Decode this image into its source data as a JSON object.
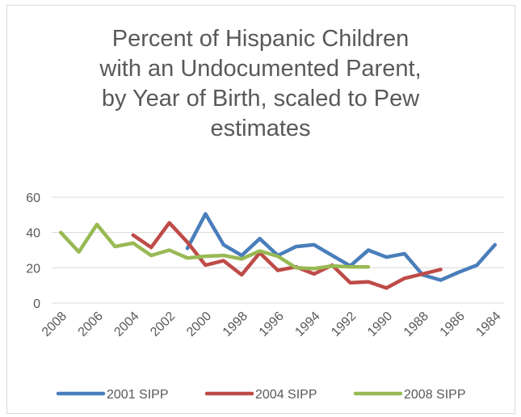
{
  "chart_data": {
    "type": "line",
    "title_lines": [
      "Percent of Hispanic Children",
      "with an Undocumented Parent,",
      "by Year of Birth, scaled to Pew",
      "estimates"
    ],
    "x_categories": [
      "2008",
      "2007",
      "2006",
      "2005",
      "2004",
      "2003",
      "2002",
      "2001",
      "2000",
      "1999",
      "1998",
      "1997",
      "1996",
      "1995",
      "1994",
      "1993",
      "1992",
      "1991",
      "1990",
      "1989",
      "1988",
      "1987",
      "1986",
      "1985",
      "1984"
    ],
    "x_tick_labels": [
      "2008",
      "2006",
      "2004",
      "2002",
      "2000",
      "1998",
      "1996",
      "1994",
      "1992",
      "1990",
      "1988",
      "1986",
      "1984"
    ],
    "y_ticks": [
      0,
      20,
      40,
      60
    ],
    "ylim": [
      0,
      60
    ],
    "grid": true,
    "legend_position": "bottom",
    "series": [
      {
        "name": "2001 SIPP",
        "color": "#4a7ebb",
        "x": [
          "2001",
          "2000",
          "1999",
          "1998",
          "1997",
          "1996",
          "1995",
          "1994",
          "1993",
          "1992",
          "1991",
          "1990",
          "1989",
          "1988",
          "1987",
          "1986",
          "1985",
          "1984"
        ],
        "values": [
          31,
          50.5,
          33,
          27,
          36.5,
          27,
          32,
          33,
          27,
          21,
          30,
          26,
          28,
          16,
          13,
          17.5,
          21.5,
          33
        ]
      },
      {
        "name": "2004 SIPP",
        "color": "#be4b48",
        "x": [
          "2004",
          "2003",
          "2002",
          "2001",
          "2000",
          "1999",
          "1998",
          "1997",
          "1996",
          "1995",
          "1994",
          "1993",
          "1992",
          "1991",
          "1990",
          "1989",
          "1988",
          "1987"
        ],
        "values": [
          38.5,
          31.5,
          45.5,
          34.5,
          21.5,
          24,
          16,
          28.5,
          18.5,
          20.5,
          16.5,
          21.5,
          11.5,
          12,
          8.5,
          14,
          16.5,
          19
        ]
      },
      {
        "name": "2008 SIPP",
        "color": "#98b954",
        "x": [
          "2008",
          "2007",
          "2006",
          "2005",
          "2004",
          "2003",
          "2002",
          "2001",
          "2000",
          "1999",
          "1998",
          "1997",
          "1996",
          "1995",
          "1994",
          "1993",
          "1992",
          "1991"
        ],
        "values": [
          40,
          29,
          44.5,
          32,
          34,
          27,
          30,
          25.5,
          26.5,
          27,
          25,
          29.5,
          26.5,
          20,
          19.5,
          21,
          20.5,
          20.5
        ]
      }
    ]
  }
}
